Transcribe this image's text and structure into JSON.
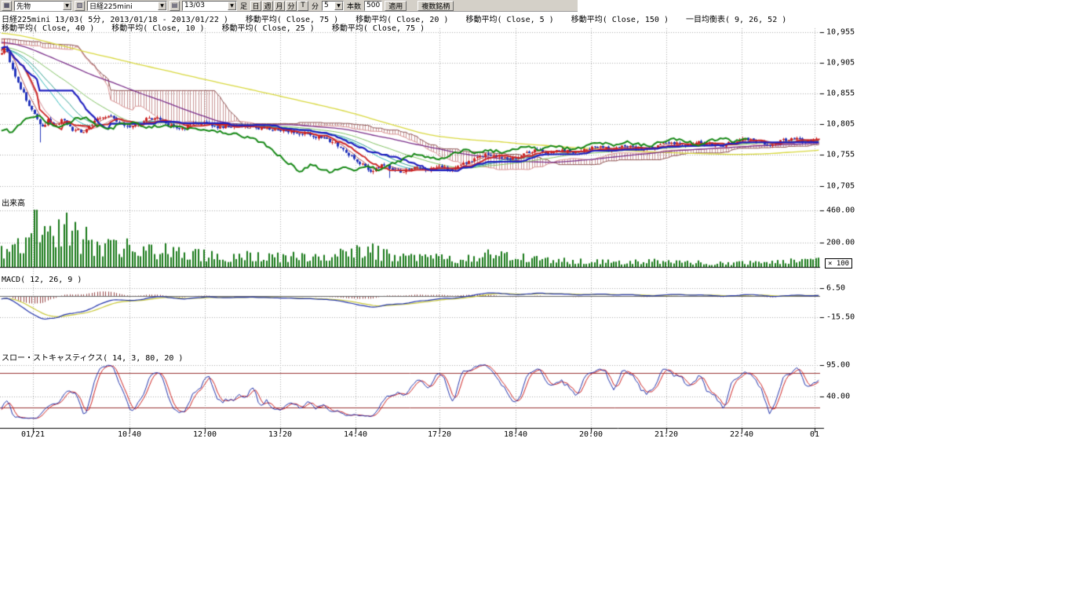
{
  "toolbar": {
    "instrument_type": "先物",
    "symbol": "日経225mini",
    "contract_month": "13/03",
    "bar_label": "足",
    "period_buttons": [
      "日",
      "週",
      "月",
      "分",
      "T"
    ],
    "minute_label": "分",
    "minute_value": "5",
    "bars_count_label": "本数",
    "bars_count_value": "500",
    "apply_button": "適用",
    "multi_symbol_button": "複数銘柄"
  },
  "legend": {
    "line1": [
      "日経225mini 13/03( 5分, 2013/01/18 - 2013/01/22 )",
      "移動平均( Close, 75 )",
      "移動平均( Close, 20 )",
      "移動平均( Close, 5 )",
      "移動平均( Close, 150 )",
      "一目均衡表( 9, 26, 52 )"
    ],
    "line2": [
      "移動平均( Close, 40 )",
      "移動平均( Close, 10 )",
      "移動平均( Close, 25 )",
      "移動平均( Close, 75 )"
    ]
  },
  "panes": {
    "price": {
      "axis_labels": [
        "10,955",
        "10,905",
        "10,855",
        "10,805",
        "10,755",
        "10,705"
      ],
      "axis_values": [
        10955,
        10905,
        10855,
        10805,
        10755,
        10705
      ]
    },
    "volume": {
      "title": "出来高",
      "axis_labels": [
        "460.00",
        "200.00"
      ],
      "axis_values": [
        460,
        200
      ],
      "multiplier": "× 100"
    },
    "macd": {
      "title": "MACD( 12, 26, 9 )",
      "axis_labels": [
        "6.50",
        "-15.50"
      ],
      "axis_values": [
        6.5,
        -15.5
      ]
    },
    "stochastics": {
      "title": "スロー・ストキャスティクス( 14, 3, 80, 20 )",
      "axis_labels": [
        "95.00",
        "40.00"
      ],
      "axis_values": [
        95,
        40
      ],
      "levels": [
        80,
        20
      ]
    },
    "time_axis": {
      "labels": [
        "01/21",
        "10:40",
        "12:00",
        "13:20",
        "14:40",
        "17:20",
        "18:40",
        "20:00",
        "21:20",
        "22:40",
        "01"
      ]
    }
  },
  "chart_data": {
    "type": "candlestick",
    "title": "日経225mini 13/03( 5分, 2013/01/18 - 2013/01/22 )",
    "symbol": "日経225mini 13/03",
    "interval": "5分",
    "date_range": "2013/01/18 - 2013/01/22",
    "bars_visible": 300,
    "price_axis_range": [
      10690,
      10965
    ],
    "indicators": {
      "moving_averages": [
        5,
        10,
        20,
        25,
        40,
        75,
        150
      ],
      "ichimoku": [
        9,
        26,
        52
      ],
      "macd": [
        12,
        26,
        9
      ],
      "slow_stochastics": [
        14,
        3,
        80,
        20
      ]
    },
    "price_keypoints": [
      [
        0,
        10918
      ],
      [
        0.004,
        10936
      ],
      [
        0.01,
        10905
      ],
      [
        0.02,
        10872
      ],
      [
        0.032,
        10840
      ],
      [
        0.042,
        10818
      ],
      [
        0.05,
        10800
      ],
      [
        0.057,
        10812
      ],
      [
        0.065,
        10801
      ],
      [
        0.075,
        10812
      ],
      [
        0.085,
        10797
      ],
      [
        0.1,
        10793
      ],
      [
        0.115,
        10812
      ],
      [
        0.13,
        10820
      ],
      [
        0.145,
        10806
      ],
      [
        0.16,
        10800
      ],
      [
        0.175,
        10812
      ],
      [
        0.19,
        10816
      ],
      [
        0.205,
        10802
      ],
      [
        0.22,
        10797
      ],
      [
        0.235,
        10806
      ],
      [
        0.25,
        10807
      ],
      [
        0.265,
        10800
      ],
      [
        0.28,
        10803
      ],
      [
        0.3,
        10800
      ],
      [
        0.32,
        10798
      ],
      [
        0.34,
        10794
      ],
      [
        0.36,
        10792
      ],
      [
        0.38,
        10786
      ],
      [
        0.4,
        10779
      ],
      [
        0.415,
        10768
      ],
      [
        0.43,
        10750
      ],
      [
        0.445,
        10735
      ],
      [
        0.455,
        10727
      ],
      [
        0.465,
        10741
      ],
      [
        0.475,
        10733
      ],
      [
        0.49,
        10726
      ],
      [
        0.505,
        10737
      ],
      [
        0.52,
        10730
      ],
      [
        0.535,
        10738
      ],
      [
        0.55,
        10731
      ],
      [
        0.565,
        10741
      ],
      [
        0.58,
        10749
      ],
      [
        0.595,
        10756
      ],
      [
        0.61,
        10752
      ],
      [
        0.625,
        10748
      ],
      [
        0.64,
        10758
      ],
      [
        0.655,
        10763
      ],
      [
        0.67,
        10757
      ],
      [
        0.685,
        10763
      ],
      [
        0.7,
        10758
      ],
      [
        0.715,
        10765
      ],
      [
        0.73,
        10769
      ],
      [
        0.745,
        10764
      ],
      [
        0.76,
        10771
      ],
      [
        0.775,
        10766
      ],
      [
        0.79,
        10764
      ],
      [
        0.805,
        10771
      ],
      [
        0.82,
        10775
      ],
      [
        0.835,
        10770
      ],
      [
        0.85,
        10777
      ],
      [
        0.865,
        10772
      ],
      [
        0.88,
        10770
      ],
      [
        0.895,
        10777
      ],
      [
        0.91,
        10781
      ],
      [
        0.925,
        10776
      ],
      [
        0.94,
        10772
      ],
      [
        0.955,
        10779
      ],
      [
        0.97,
        10781
      ],
      [
        0.985,
        10777
      ],
      [
        1,
        10781
      ]
    ],
    "volume_keypoints": [
      [
        0,
        120
      ],
      [
        0.03,
        200
      ],
      [
        0.035,
        450
      ],
      [
        0.045,
        320
      ],
      [
        0.055,
        360
      ],
      [
        0.065,
        300
      ],
      [
        0.075,
        330
      ],
      [
        0.085,
        280
      ],
      [
        0.1,
        220
      ],
      [
        0.12,
        170
      ],
      [
        0.14,
        190
      ],
      [
        0.16,
        150
      ],
      [
        0.18,
        120
      ],
      [
        0.2,
        130
      ],
      [
        0.23,
        100
      ],
      [
        0.26,
        90
      ],
      [
        0.3,
        85
      ],
      [
        0.34,
        75
      ],
      [
        0.38,
        90
      ],
      [
        0.41,
        120
      ],
      [
        0.44,
        150
      ],
      [
        0.47,
        100
      ],
      [
        0.5,
        80
      ],
      [
        0.53,
        70
      ],
      [
        0.56,
        65
      ],
      [
        0.6,
        110
      ],
      [
        0.63,
        80
      ],
      [
        0.66,
        60
      ],
      [
        0.7,
        45
      ],
      [
        0.75,
        40
      ],
      [
        0.8,
        45
      ],
      [
        0.85,
        35
      ],
      [
        0.9,
        30
      ],
      [
        0.95,
        40
      ],
      [
        1,
        55
      ]
    ],
    "colors": {
      "up": "#cc2222",
      "down": "#2233bb",
      "volume": "#1a7a1a",
      "ma5": "#b05050",
      "ma10": "#d08890",
      "ma20": "#30b8b8",
      "ma25": "#2f9e8f",
      "ma40": "#7fc060",
      "ma75": "#7a2f8a",
      "ma150": "#d8d840",
      "tenkan": "#cc2222",
      "kijun": "#2020c0",
      "chikou": "#168816",
      "span_a": "#d89090",
      "span_b": "#8a5050",
      "cloud": "#aa5a5a",
      "macd": "#2233aa",
      "signal": "#c8c838",
      "histogram": "#964444",
      "stoch_k": "#2233aa",
      "stoch_d": "#cc2222",
      "level_line": "#993333",
      "grid": "#aaaaaa"
    }
  }
}
